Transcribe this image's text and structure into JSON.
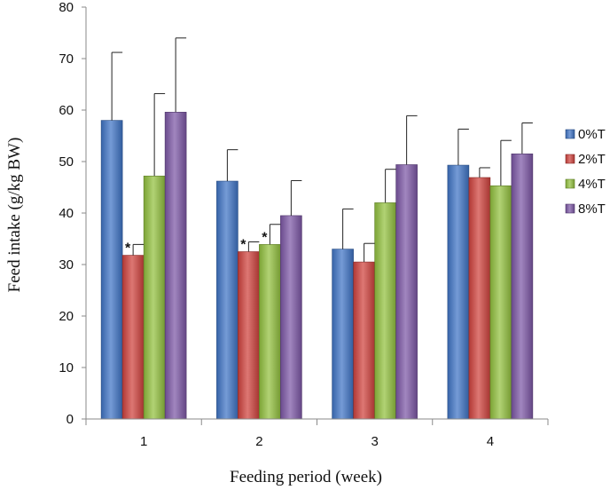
{
  "chart_data": {
    "type": "bar",
    "title": "",
    "xlabel": "Feeding period (week)",
    "ylabel": "Feed intake  (g/kg BW)",
    "ylim": [
      0,
      80
    ],
    "yticks": [
      0,
      10,
      20,
      30,
      40,
      50,
      60,
      70,
      80
    ],
    "categories": [
      "1",
      "2",
      "3",
      "4"
    ],
    "legend_position": "right",
    "grid": false,
    "series": [
      {
        "name": "0%T",
        "color": "#3F74C6",
        "values": [
          58,
          46.2,
          33,
          49.3
        ],
        "error": [
          13.2,
          6.1,
          7.8,
          7.0
        ]
      },
      {
        "name": "2%T",
        "color": "#D0423D",
        "values": [
          31.8,
          32.5,
          30.5,
          46.9
        ],
        "error": [
          2.1,
          1.9,
          3.6,
          1.9
        ]
      },
      {
        "name": "4%T",
        "color": "#92C13E",
        "values": [
          47.2,
          33.9,
          42,
          45.3
        ],
        "error": [
          16.0,
          3.9,
          6.5,
          8.8
        ]
      },
      {
        "name": "8%T",
        "color": "#7D57A6",
        "values": [
          59.6,
          39.5,
          49.4,
          51.5
        ],
        "error": [
          14.4,
          6.8,
          9.5,
          6.0
        ]
      }
    ],
    "annotations": [
      {
        "category": "1",
        "series": "2%T",
        "text": "*"
      },
      {
        "category": "2",
        "series": "2%T",
        "text": "*"
      },
      {
        "category": "2",
        "series": "4%T",
        "text": "*"
      }
    ]
  }
}
